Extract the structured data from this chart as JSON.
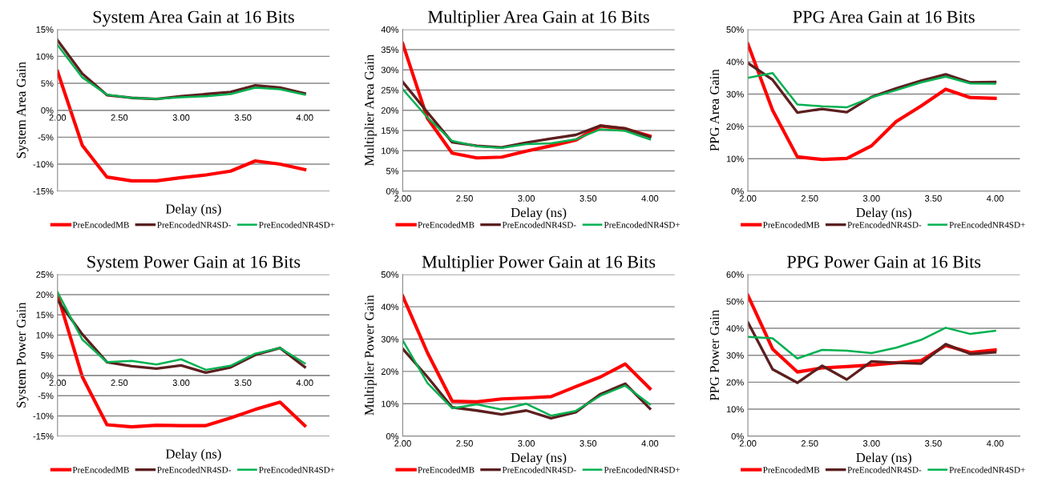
{
  "chart_data": [
    {
      "type": "line",
      "title": "System Area Gain at 16 Bits",
      "xlabel": "Delay (ns)",
      "ylabel": "System Area Gain",
      "x": [
        2.0,
        2.2,
        2.4,
        2.6,
        2.8,
        3.0,
        3.2,
        3.4,
        3.6,
        3.8,
        4.0
      ],
      "xlim": [
        2.0,
        4.2
      ],
      "xticks": [
        {
          "value": 2.0,
          "label": "2.00"
        },
        {
          "value": 2.5,
          "label": "2.50"
        },
        {
          "value": 3.0,
          "label": "3.00"
        },
        {
          "value": 3.5,
          "label": "3.50"
        },
        {
          "value": 4.0,
          "label": "4.00"
        }
      ],
      "ylim": [
        -15,
        15
      ],
      "yticks": [
        {
          "value": -15,
          "label": "-15%"
        },
        {
          "value": -10,
          "label": "-10%"
        },
        {
          "value": -5,
          "label": "-5%"
        },
        {
          "value": 0,
          "label": "0%"
        },
        {
          "value": 5,
          "label": "5%"
        },
        {
          "value": 10,
          "label": "10%"
        },
        {
          "value": 15,
          "label": "15%"
        }
      ],
      "grid": "y",
      "legend": "bottom",
      "series": [
        {
          "name": "PreEncodedMB",
          "color": "#ff0000",
          "values": [
            7.2,
            -6.5,
            -12.4,
            -13.1,
            -13.1,
            -12.5,
            -12.0,
            -11.3,
            -9.4,
            -10.0,
            -11.0
          ]
        },
        {
          "name": "PreEncodedNR4SD-",
          "color": "#5c1f1f",
          "values": [
            13.0,
            6.8,
            2.8,
            2.3,
            2.1,
            2.6,
            3.0,
            3.4,
            4.6,
            4.2,
            3.1
          ]
        },
        {
          "name": "PreEncodedNR4SD+",
          "color": "#00b050",
          "values": [
            12.1,
            6.1,
            2.9,
            2.3,
            2.1,
            2.4,
            2.6,
            3.0,
            4.2,
            3.9,
            2.9
          ]
        }
      ]
    },
    {
      "type": "line",
      "title": "Multiplier Area Gain at 16 Bits",
      "xlabel": "Delay (ns)",
      "ylabel": "Multiplier Area Gain",
      "x": [
        2.0,
        2.2,
        2.4,
        2.6,
        2.8,
        3.0,
        3.2,
        3.4,
        3.6,
        3.8,
        4.0
      ],
      "xlim": [
        2.0,
        4.2
      ],
      "xticks": [
        {
          "value": 2.0,
          "label": "2.00"
        },
        {
          "value": 2.5,
          "label": "2.50"
        },
        {
          "value": 3.0,
          "label": "3.00"
        },
        {
          "value": 3.5,
          "label": "3.50"
        },
        {
          "value": 4.0,
          "label": "4.00"
        }
      ],
      "ylim": [
        0,
        40
      ],
      "yticks": [
        {
          "value": 0,
          "label": "0%"
        },
        {
          "value": 5,
          "label": "5%"
        },
        {
          "value": 10,
          "label": "10%"
        },
        {
          "value": 15,
          "label": "15%"
        },
        {
          "value": 20,
          "label": "20%"
        },
        {
          "value": 25,
          "label": "25%"
        },
        {
          "value": 30,
          "label": "30%"
        },
        {
          "value": 35,
          "label": "35%"
        },
        {
          "value": 40,
          "label": "40%"
        }
      ],
      "grid": "y",
      "legend": "bottom",
      "series": [
        {
          "name": "PreEncodedMB",
          "color": "#ff0000",
          "values": [
            36.5,
            18.0,
            9.4,
            8.2,
            8.4,
            9.9,
            11.2,
            12.6,
            16.1,
            15.4,
            13.6
          ]
        },
        {
          "name": "PreEncodedNR4SD-",
          "color": "#5c1f1f",
          "values": [
            27.0,
            19.5,
            12.1,
            11.2,
            10.8,
            12.0,
            13.0,
            13.9,
            16.2,
            15.5,
            13.4
          ]
        },
        {
          "name": "PreEncodedNR4SD+",
          "color": "#00b050",
          "values": [
            25.2,
            18.2,
            12.4,
            11.1,
            10.7,
            11.6,
            11.8,
            12.8,
            15.3,
            14.9,
            12.8
          ]
        }
      ]
    },
    {
      "type": "line",
      "title": "PPG Area Gain at 16 Bits",
      "xlabel": "Delay (ns)",
      "ylabel": "PPG Area Gain",
      "x": [
        2.0,
        2.2,
        2.4,
        2.6,
        2.8,
        3.0,
        3.2,
        3.4,
        3.6,
        3.8,
        4.0
      ],
      "xlim": [
        2.0,
        4.2
      ],
      "xticks": [
        {
          "value": 2.0,
          "label": "2.00"
        },
        {
          "value": 2.5,
          "label": "2.50"
        },
        {
          "value": 3.0,
          "label": "3.00"
        },
        {
          "value": 3.5,
          "label": "3.50"
        },
        {
          "value": 4.0,
          "label": "4.00"
        }
      ],
      "ylim": [
        0,
        50
      ],
      "yticks": [
        {
          "value": 0,
          "label": "0%"
        },
        {
          "value": 10,
          "label": "10%"
        },
        {
          "value": 20,
          "label": "20%"
        },
        {
          "value": 30,
          "label": "30%"
        },
        {
          "value": 40,
          "label": "40%"
        },
        {
          "value": 50,
          "label": "50%"
        }
      ],
      "grid": "y",
      "legend": "bottom",
      "series": [
        {
          "name": "PreEncodedMB",
          "color": "#ff0000",
          "values": [
            45.5,
            25.0,
            10.6,
            9.8,
            10.1,
            14.0,
            21.5,
            26.3,
            31.5,
            28.9,
            28.7
          ]
        },
        {
          "name": "PreEncodedNR4SD-",
          "color": "#5c1f1f",
          "values": [
            39.6,
            34.4,
            24.3,
            25.4,
            24.4,
            29.1,
            31.8,
            34.1,
            36.1,
            33.6,
            33.7
          ]
        },
        {
          "name": "PreEncodedNR4SD+",
          "color": "#00b050",
          "values": [
            35.0,
            36.5,
            26.8,
            26.2,
            25.9,
            29.0,
            31.2,
            33.6,
            35.4,
            33.3,
            33.2
          ]
        }
      ]
    },
    {
      "type": "line",
      "title": "System Power Gain at 16 Bits",
      "xlabel": "Delay (ns)",
      "ylabel": "System Power Gain",
      "x": [
        2.0,
        2.2,
        2.4,
        2.6,
        2.8,
        3.0,
        3.2,
        3.4,
        3.6,
        3.8,
        4.0
      ],
      "xlim": [
        2.0,
        4.2
      ],
      "xticks": [
        {
          "value": 2.0,
          "label": "2.00"
        },
        {
          "value": 2.5,
          "label": "2.50"
        },
        {
          "value": 3.0,
          "label": "3.00"
        },
        {
          "value": 3.5,
          "label": "3.50"
        },
        {
          "value": 4.0,
          "label": "4.00"
        }
      ],
      "ylim": [
        -15,
        25
      ],
      "yticks": [
        {
          "value": -15,
          "label": "-15%"
        },
        {
          "value": -10,
          "label": "-10%"
        },
        {
          "value": -5,
          "label": "-5%"
        },
        {
          "value": 0,
          "label": "0%"
        },
        {
          "value": 5,
          "label": "5%"
        },
        {
          "value": 10,
          "label": "10%"
        },
        {
          "value": 15,
          "label": "15%"
        },
        {
          "value": 20,
          "label": "20%"
        },
        {
          "value": 25,
          "label": "25%"
        }
      ],
      "grid": "y",
      "legend": "bottom",
      "series": [
        {
          "name": "PreEncodedMB",
          "color": "#ff0000",
          "values": [
            20.0,
            -0.3,
            -12.2,
            -12.7,
            -12.3,
            -12.4,
            -12.4,
            -10.5,
            -8.4,
            -6.6,
            -12.4
          ]
        },
        {
          "name": "PreEncodedNR4SD-",
          "color": "#5c1f1f",
          "values": [
            18.6,
            10.2,
            3.3,
            2.3,
            1.7,
            2.5,
            0.7,
            2.0,
            5.1,
            6.8,
            2.1
          ]
        },
        {
          "name": "PreEncodedNR4SD+",
          "color": "#00b050",
          "values": [
            20.6,
            8.9,
            3.3,
            3.6,
            2.7,
            4.0,
            1.4,
            2.4,
            5.4,
            6.8,
            3.0
          ]
        }
      ]
    },
    {
      "type": "line",
      "title": "Multiplier Power Gain at 16 Bits",
      "xlabel": "Delay (ns)",
      "ylabel": "Multiplier Power Gain",
      "x": [
        2.0,
        2.2,
        2.4,
        2.6,
        2.8,
        3.0,
        3.2,
        3.4,
        3.6,
        3.8,
        4.0
      ],
      "xlim": [
        2.0,
        4.2
      ],
      "xticks": [
        {
          "value": 2.0,
          "label": "2.00"
        },
        {
          "value": 2.5,
          "label": "2.50"
        },
        {
          "value": 3.0,
          "label": "3.00"
        },
        {
          "value": 3.5,
          "label": "3.50"
        },
        {
          "value": 4.0,
          "label": "4.00"
        }
      ],
      "ylim": [
        0,
        50
      ],
      "yticks": [
        {
          "value": 0,
          "label": "0%"
        },
        {
          "value": 10,
          "label": "10%"
        },
        {
          "value": 20,
          "label": "20%"
        },
        {
          "value": 30,
          "label": "30%"
        },
        {
          "value": 40,
          "label": "40%"
        },
        {
          "value": 50,
          "label": "50%"
        }
      ],
      "grid": "y",
      "legend": "bottom",
      "series": [
        {
          "name": "PreEncodedMB",
          "color": "#ff0000",
          "values": [
            43.3,
            25.8,
            10.8,
            10.6,
            11.5,
            11.8,
            12.2,
            15.3,
            18.3,
            22.3,
            14.7
          ]
        },
        {
          "name": "PreEncodedNR4SD-",
          "color": "#5c1f1f",
          "values": [
            27.0,
            18.3,
            8.9,
            7.9,
            6.7,
            7.9,
            5.5,
            7.4,
            13.0,
            16.2,
            8.5
          ]
        },
        {
          "name": "PreEncodedNR4SD+",
          "color": "#00b050",
          "values": [
            29.6,
            16.4,
            8.6,
            9.8,
            8.2,
            10.0,
            6.3,
            7.8,
            12.5,
            15.6,
            9.8
          ]
        }
      ]
    },
    {
      "type": "line",
      "title": "PPG Power Gain at 16 Bits",
      "xlabel": "Delay (ns)",
      "ylabel": "PPG Power Gain",
      "x": [
        2.0,
        2.2,
        2.4,
        2.6,
        2.8,
        3.0,
        3.2,
        3.4,
        3.6,
        3.8,
        4.0
      ],
      "xlim": [
        2.0,
        4.2
      ],
      "xticks": [
        {
          "value": 2.0,
          "label": "2.00"
        },
        {
          "value": 2.5,
          "label": "2.50"
        },
        {
          "value": 3.0,
          "label": "3.00"
        },
        {
          "value": 3.5,
          "label": "3.50"
        },
        {
          "value": 4.0,
          "label": "4.00"
        }
      ],
      "ylim": [
        0,
        60
      ],
      "yticks": [
        {
          "value": 0,
          "label": "0%"
        },
        {
          "value": 10,
          "label": "10%"
        },
        {
          "value": 20,
          "label": "20%"
        },
        {
          "value": 30,
          "label": "30%"
        },
        {
          "value": 40,
          "label": "40%"
        },
        {
          "value": 50,
          "label": "50%"
        },
        {
          "value": 60,
          "label": "60%"
        }
      ],
      "grid": "y",
      "legend": "bottom",
      "series": [
        {
          "name": "PreEncodedMB",
          "color": "#ff0000",
          "values": [
            52.2,
            32.3,
            23.8,
            25.3,
            25.8,
            26.4,
            27.2,
            28.0,
            33.6,
            31.0,
            32.0
          ]
        },
        {
          "name": "PreEncodedNR4SD-",
          "color": "#5c1f1f",
          "values": [
            42.2,
            24.8,
            19.8,
            26.1,
            21.0,
            27.7,
            27.2,
            26.9,
            34.1,
            30.5,
            31.1
          ]
        },
        {
          "name": "PreEncodedNR4SD+",
          "color": "#00b050",
          "values": [
            36.8,
            36.3,
            28.8,
            32.0,
            31.7,
            30.8,
            32.8,
            35.7,
            40.2,
            37.9,
            39.1
          ]
        }
      ]
    }
  ]
}
